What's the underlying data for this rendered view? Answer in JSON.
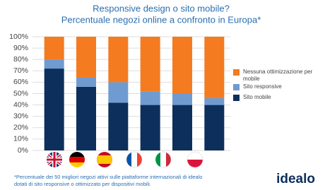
{
  "chart_data": {
    "type": "stacked_bar",
    "title": "Responsive design o sito mobile?",
    "subtitle": "Percentuale negozi online a confronto in Europa*",
    "categories": [
      null,
      null,
      null,
      null,
      null,
      null
    ],
    "series": [
      {
        "name": "Sito mobile",
        "color": "#0d2f5c",
        "values": [
          72,
          56,
          42,
          40,
          40,
          40
        ]
      },
      {
        "name": "Sito responsive",
        "color": "#6f9bd1",
        "values": [
          8,
          8,
          18,
          12,
          10,
          6
        ]
      },
      {
        "name": "Nessuna ottimizzazione per mobile",
        "color": "#f47b20",
        "values": [
          20,
          36,
          40,
          48,
          50,
          54
        ]
      }
    ],
    "ylim": [
      0,
      100
    ],
    "yticks": [
      {
        "value": 0,
        "label": "0%"
      },
      {
        "value": 10,
        "label": "10%"
      },
      {
        "value": 20,
        "label": "20%"
      },
      {
        "value": 30,
        "label": "30%"
      },
      {
        "value": 40,
        "label": "40%"
      },
      {
        "value": 50,
        "label": "50%"
      },
      {
        "value": 60,
        "label": "60%"
      },
      {
        "value": 70,
        "label": "70%"
      },
      {
        "value": 80,
        "label": "80%"
      },
      {
        "value": 90,
        "label": "90%"
      },
      {
        "value": 100,
        "label": "100%"
      }
    ],
    "grid": true,
    "footnote": [
      "*Percentuale dei 50 migliori negozi attivi sulle piattaforme internazionali di idealo",
      "dotati di sito responsive o ottimizzato per dispositivi mobili."
    ],
    "brand": "idealo"
  }
}
